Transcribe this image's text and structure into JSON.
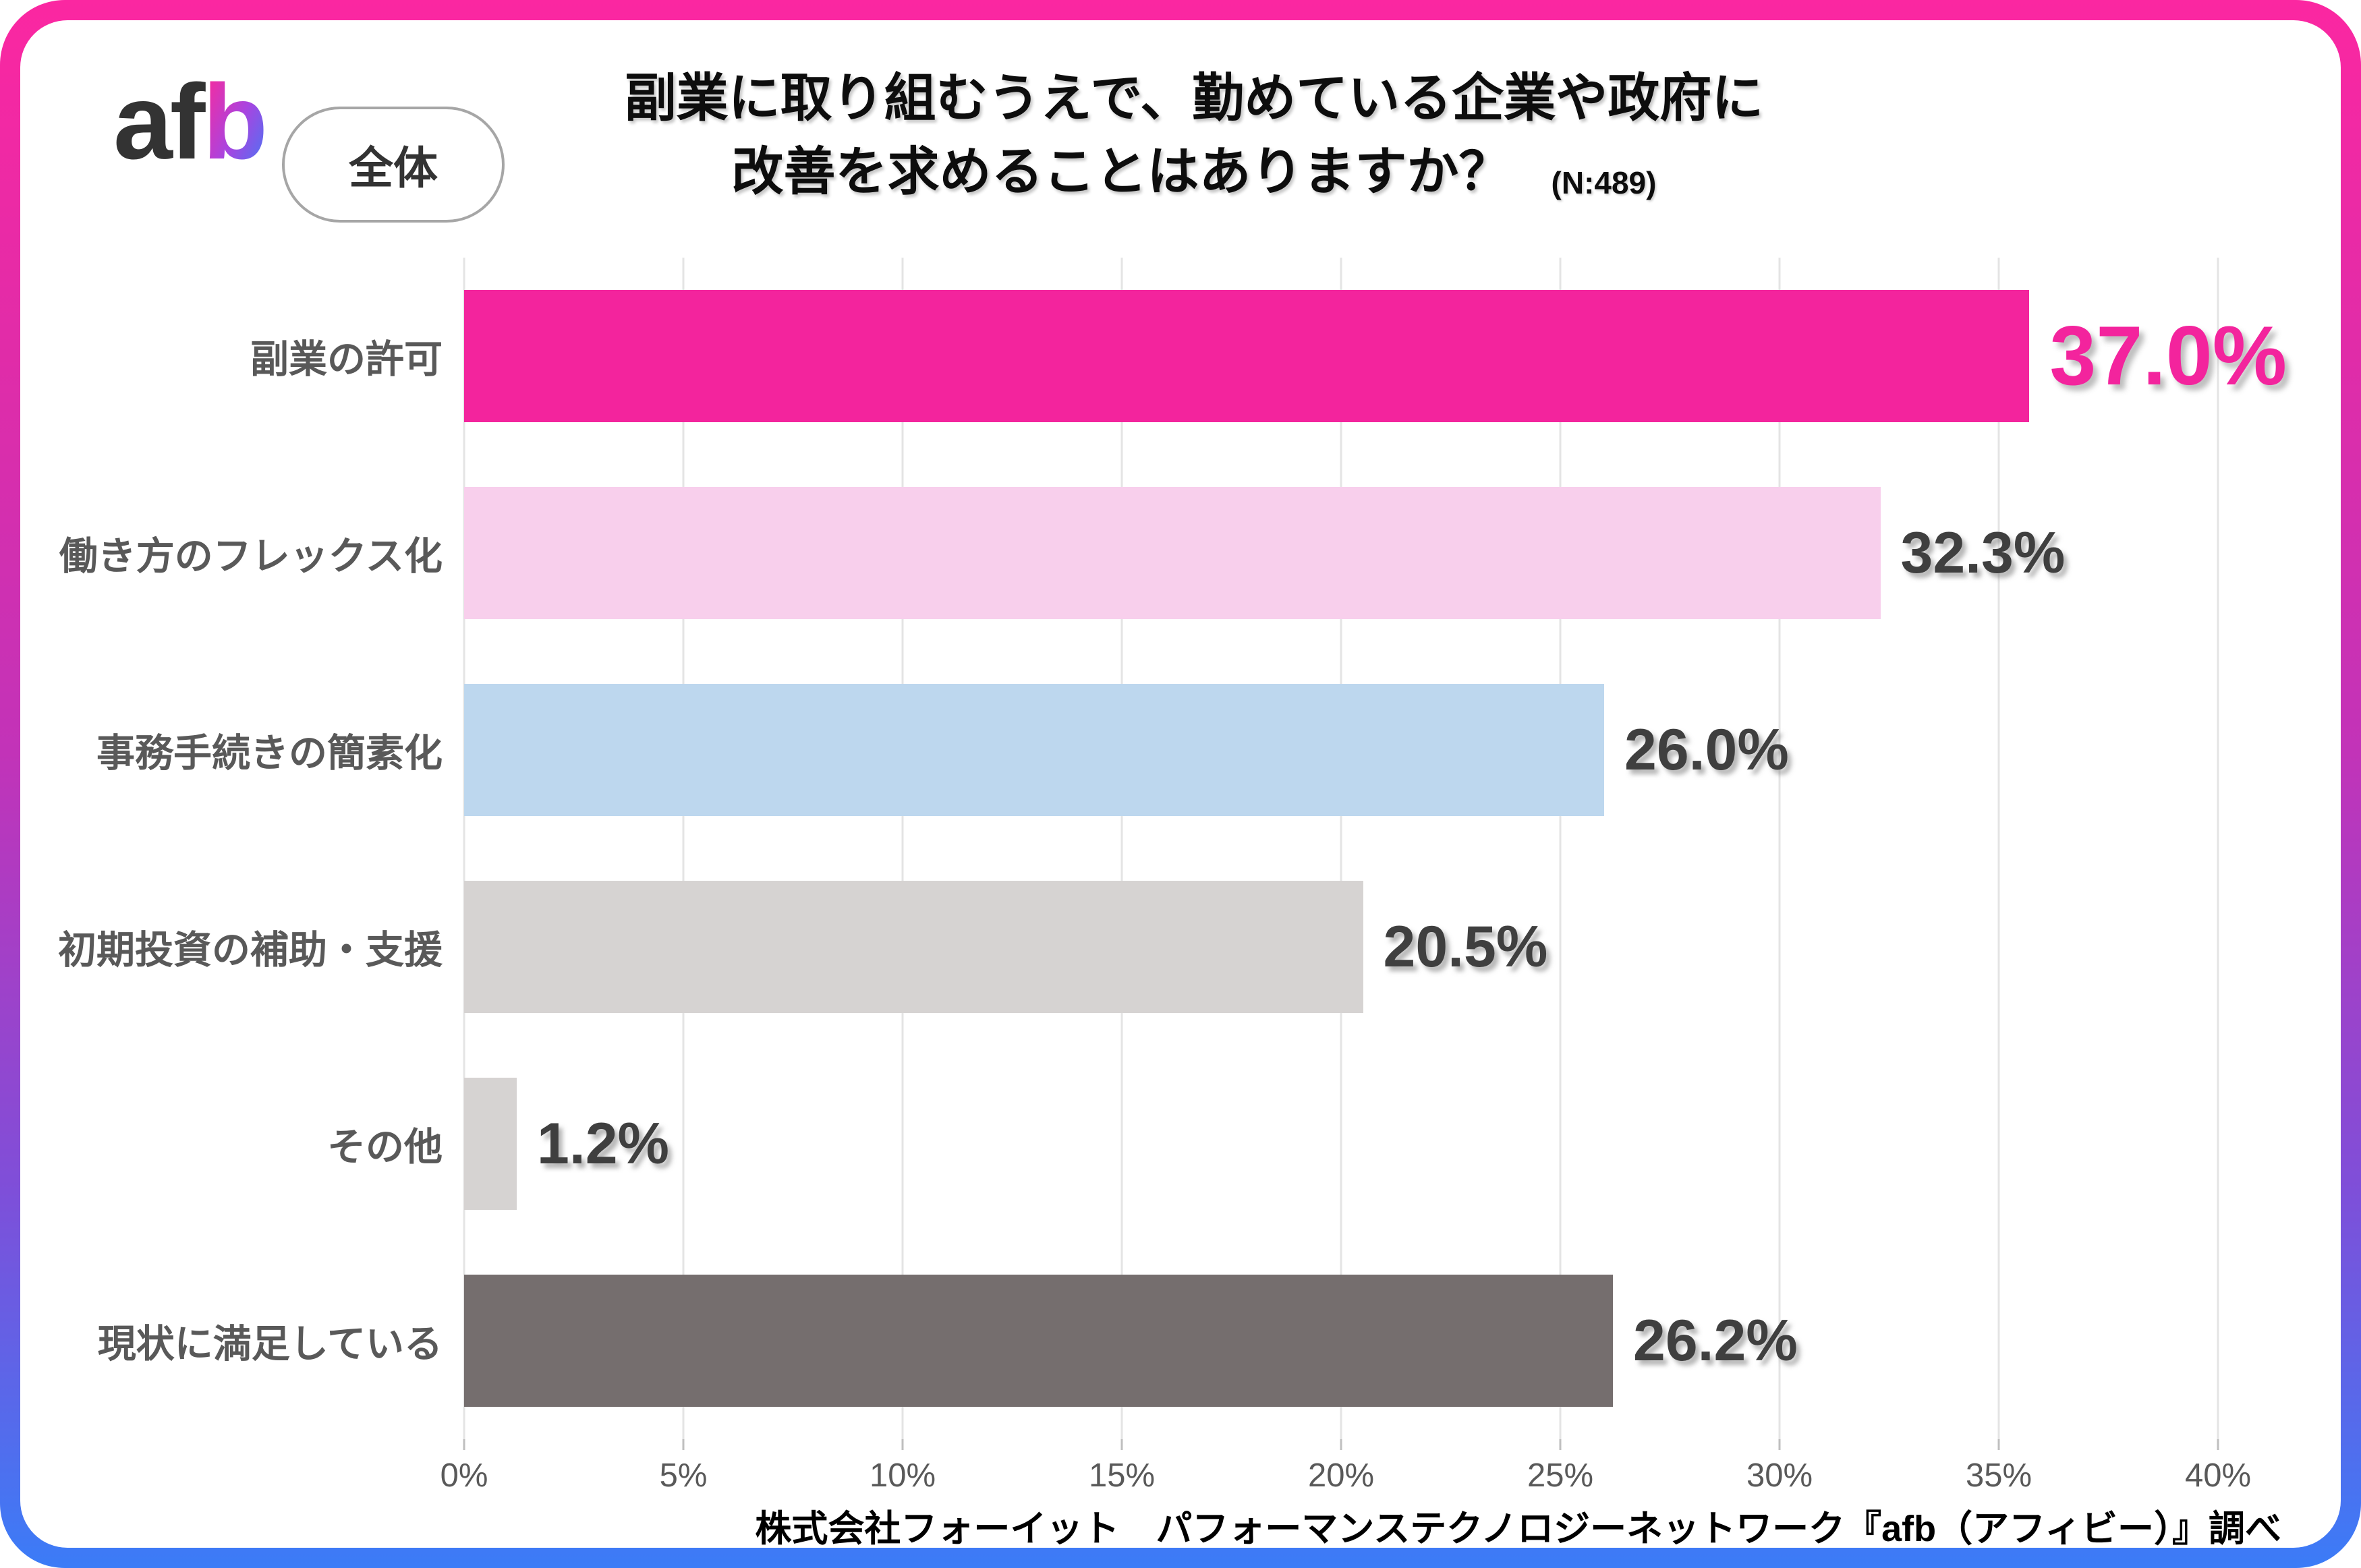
{
  "logo": {
    "part_dark": "af",
    "part_gradient": "b"
  },
  "badge": {
    "label": "全体"
  },
  "header": {
    "title_line1": "副業に取り組むうえで、勤めている企業や政府に",
    "title_line2": "改善を求めることはありますか？",
    "sample_size": "(N:489)"
  },
  "chart_data": {
    "type": "bar",
    "orientation": "horizontal",
    "title": "副業に取り組むうえで、勤めている企業や政府に改善を求めることはありますか？",
    "sample_size_label": "(N:489)",
    "categories": [
      "副業の許可",
      "働き方のフレックス化",
      "事務手続きの簡素化",
      "初期投資の補助・支援",
      "その他",
      "現状に満足している"
    ],
    "values": [
      37.0,
      32.3,
      26.0,
      20.5,
      1.2,
      26.2
    ],
    "value_labels": [
      "37.0%",
      "32.3%",
      "26.0%",
      "20.5%",
      "1.2%",
      "26.2%"
    ],
    "bar_colors": [
      "#f3249d",
      "#f8cfec",
      "#bdd7ee",
      "#d6d3d2",
      "#d6d3d2",
      "#756e6e"
    ],
    "highlight_index": 0,
    "highlight_color": "#f3249d",
    "xlabel": "",
    "ylabel": "",
    "xlim": [
      0,
      40
    ],
    "xticks": [
      "0%",
      "5%",
      "10%",
      "15%",
      "20%",
      "25%",
      "30%",
      "35%",
      "40%"
    ],
    "grid": true,
    "legend": false
  },
  "footer": {
    "credit": "株式会社フォーイット　パフォーマンステクノロジーネットワーク『afb（アフィビー）』調べ"
  },
  "colors": {
    "frame_gradient_top": "#fb27a1",
    "frame_gradient_mid": "#c233b8",
    "frame_gradient_bottom": "#3b7cf7",
    "gridline": "#e4e4e4",
    "category_label": "#595959",
    "value_label": "#3f3f3f",
    "tick_label": "#595959"
  }
}
